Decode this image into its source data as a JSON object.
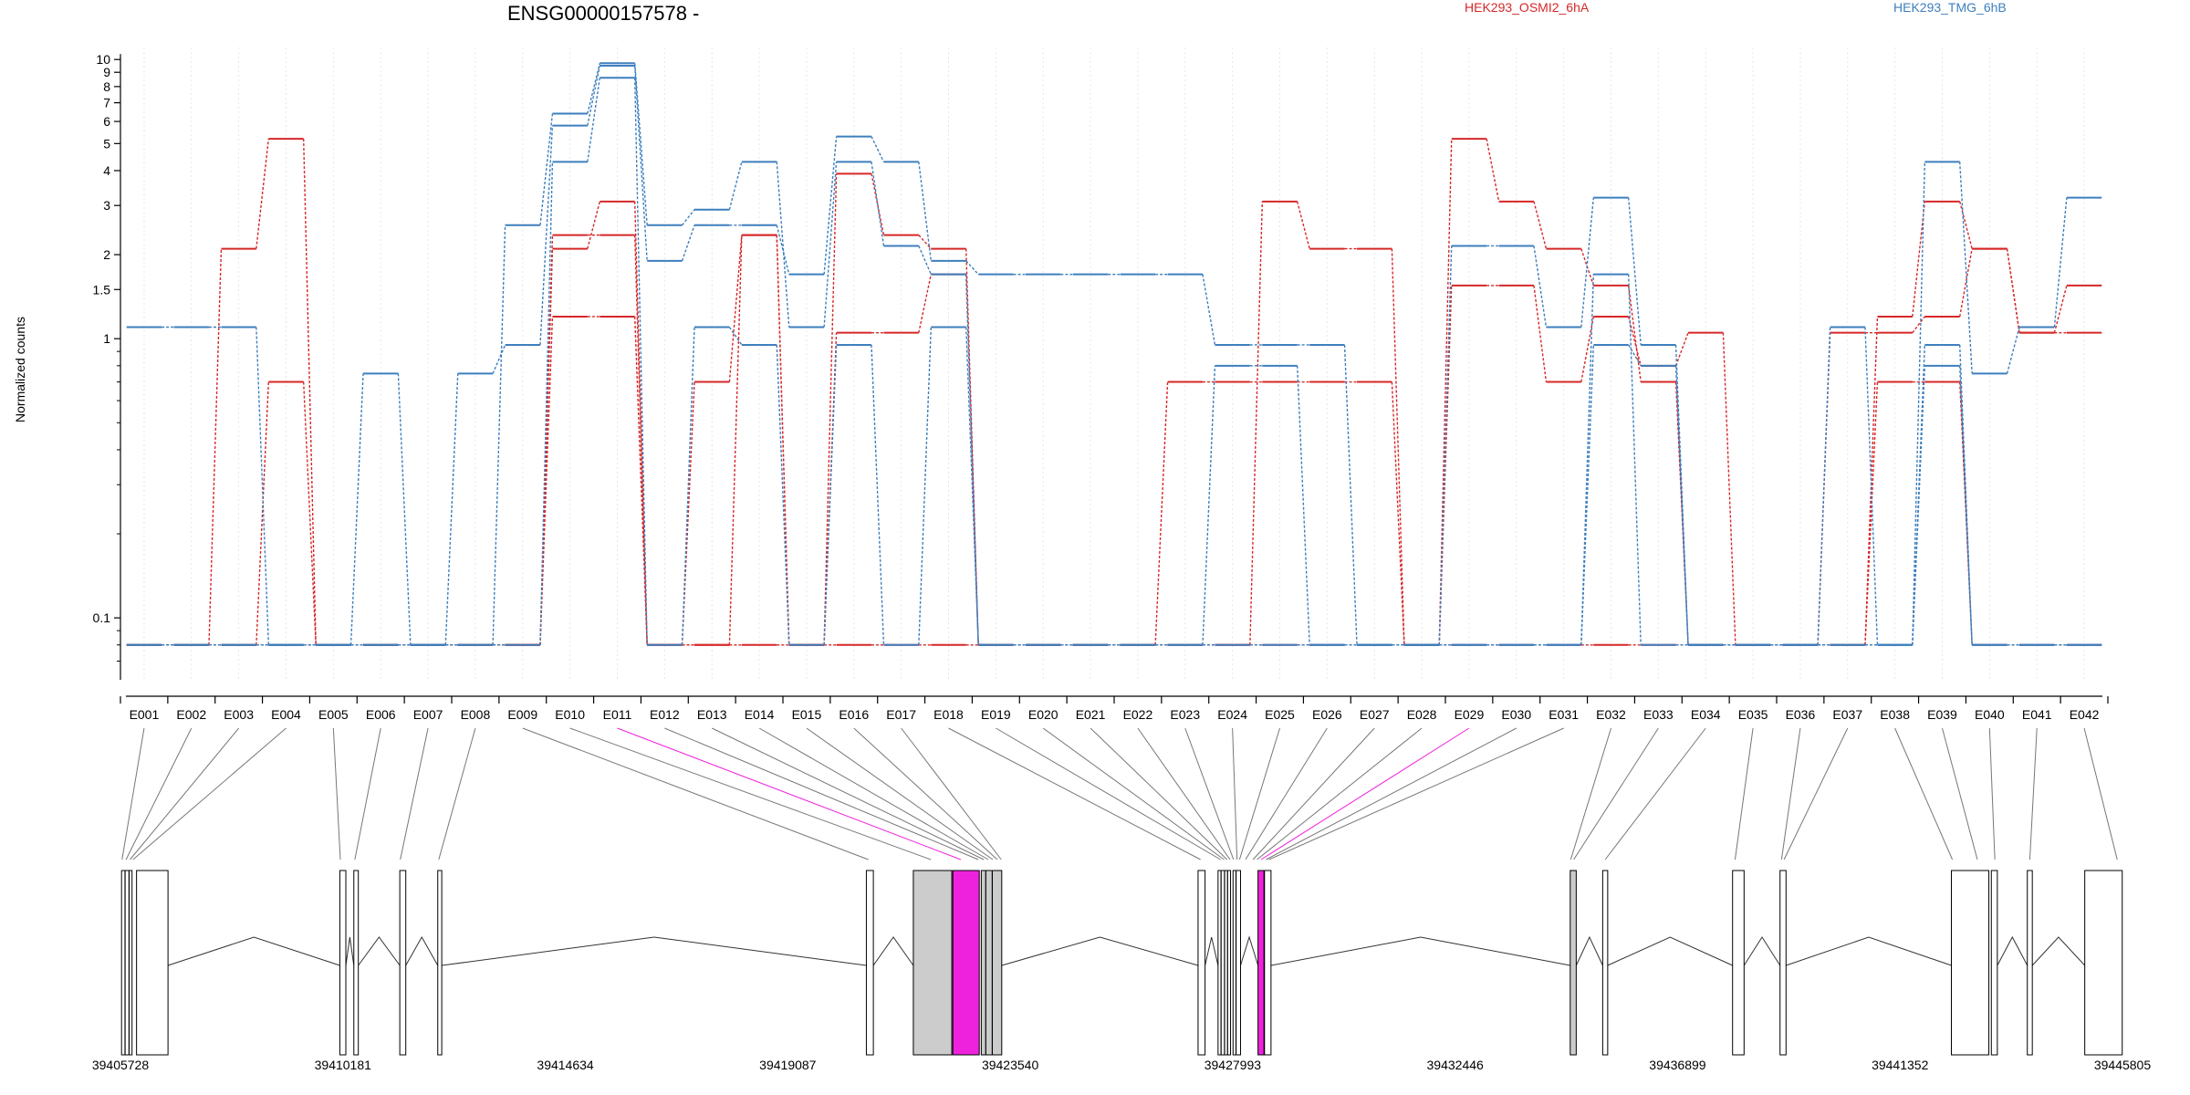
{
  "title": "ENSG00000157578 -",
  "ylabel": "Normalized counts",
  "colors": {
    "cond_a": "#d62728",
    "cond_b": "#3d7fbd",
    "highlight": "#ee22dd",
    "exon_grey": "#cccccc"
  },
  "legend": {
    "cond_a": "HEK293_OSMI2_6hA",
    "cond_b": "HEK293_TMG_6hB"
  },
  "chart_data": {
    "type": "line",
    "title": "ENSG00000157578 -",
    "ylabel": "Normalized counts",
    "yscale": "log",
    "ylim": [
      0.06,
      10.4
    ],
    "yticks": [
      {
        "v": 0.1,
        "label": "0.1"
      },
      {
        "v": 1,
        "label": "1"
      },
      {
        "v": 1.5,
        "label": "1.5"
      },
      {
        "v": 2,
        "label": "2"
      },
      {
        "v": 3,
        "label": "3"
      },
      {
        "v": 4,
        "label": "4"
      },
      {
        "v": 5,
        "label": "5"
      },
      {
        "v": 6,
        "label": "6"
      },
      {
        "v": 7,
        "label": "7"
      },
      {
        "v": 8,
        "label": "8"
      },
      {
        "v": 9,
        "label": "9"
      },
      {
        "v": 10,
        "label": "10"
      }
    ],
    "yticks_minor": [
      0.2,
      0.3,
      0.4,
      0.5,
      0.6,
      0.7,
      0.8,
      0.9
    ],
    "categories": [
      "E001",
      "E002",
      "E003",
      "E004",
      "E005",
      "E006",
      "E007",
      "E008",
      "E009",
      "E010",
      "E011",
      "E012",
      "E013",
      "E014",
      "E015",
      "E016",
      "E017",
      "E018",
      "E019",
      "E020",
      "E021",
      "E022",
      "E023",
      "E024",
      "E025",
      "E026",
      "E027",
      "E028",
      "E029",
      "E030",
      "E031",
      "E032",
      "E033",
      "E034",
      "E035",
      "E036",
      "E037",
      "E038",
      "E039",
      "E040",
      "E041",
      "E042"
    ],
    "highlighted_bins": [
      "E011",
      "E029"
    ],
    "series": [
      {
        "cond": "a",
        "values": [
          0.08,
          0.08,
          2.1,
          5.2,
          0.08,
          0.08,
          0.08,
          0.08,
          0.08,
          2.1,
          3.1,
          0.08,
          0.08,
          2.35,
          0.08,
          3.9,
          2.35,
          2.1,
          0.08,
          0.08,
          0.08,
          0.08,
          0.08,
          0.08,
          3.1,
          2.1,
          2.1,
          0.08,
          5.2,
          3.1,
          2.1,
          1.55,
          0.7,
          0.08,
          0.08,
          0.08,
          0.08,
          1.2,
          3.1,
          2.1,
          1.05,
          1.55
        ]
      },
      {
        "cond": "a",
        "values": [
          0.08,
          0.08,
          0.08,
          0.7,
          0.08,
          0.08,
          0.08,
          0.08,
          0.08,
          2.35,
          2.35,
          0.08,
          0.7,
          2.35,
          0.08,
          1.05,
          1.05,
          1.7,
          0.08,
          0.08,
          0.08,
          0.08,
          0.7,
          0.7,
          0.7,
          0.7,
          0.7,
          0.08,
          1.55,
          1.55,
          0.7,
          1.2,
          0.8,
          1.05,
          0.08,
          0.08,
          1.05,
          1.05,
          1.2,
          2.1,
          1.05,
          1.05
        ]
      },
      {
        "cond": "a",
        "values": [
          0.08,
          0.08,
          0.08,
          0.08,
          0.08,
          0.08,
          0.08,
          0.08,
          0.08,
          1.2,
          1.2,
          0.08,
          0.08,
          0.08,
          0.08,
          0.08,
          0.08,
          0.08,
          0.08,
          0.08,
          0.08,
          0.08,
          0.08,
          0.08,
          0.08,
          0.08,
          0.08,
          0.08,
          0.08,
          0.08,
          0.08,
          0.08,
          0.08,
          0.08,
          0.08,
          0.08,
          0.08,
          0.7,
          0.7,
          0.08,
          0.08,
          0.08
        ]
      },
      {
        "cond": "b",
        "values": [
          1.1,
          1.1,
          1.1,
          0.08,
          0.08,
          0.75,
          0.08,
          0.75,
          0.95,
          5.8,
          9.5,
          1.9,
          2.55,
          2.55,
          1.7,
          5.3,
          4.3,
          1.9,
          1.7,
          1.7,
          1.7,
          1.7,
          1.7,
          0.95,
          0.95,
          0.95,
          0.08,
          0.08,
          2.15,
          2.15,
          1.1,
          3.2,
          0.95,
          0.08,
          0.08,
          0.08,
          1.1,
          0.08,
          4.3,
          0.75,
          1.1,
          3.2
        ]
      },
      {
        "cond": "b",
        "values": [
          0.08,
          0.08,
          0.08,
          0.08,
          0.08,
          0.08,
          0.08,
          0.08,
          2.55,
          6.4,
          9.7,
          2.55,
          2.9,
          4.3,
          1.1,
          4.3,
          2.15,
          1.7,
          0.08,
          0.08,
          0.08,
          0.08,
          0.08,
          0.08,
          0.08,
          0.08,
          0.08,
          0.08,
          0.08,
          0.08,
          0.08,
          1.7,
          0.08,
          0.08,
          0.08,
          0.08,
          0.08,
          0.08,
          0.95,
          0.08,
          0.08,
          0.08
        ]
      },
      {
        "cond": "b",
        "values": [
          0.08,
          0.08,
          0.08,
          0.08,
          0.08,
          0.08,
          0.08,
          0.08,
          0.08,
          4.3,
          8.6,
          0.08,
          1.1,
          0.95,
          0.08,
          0.95,
          0.08,
          1.1,
          0.08,
          0.08,
          0.08,
          0.08,
          0.08,
          0.8,
          0.8,
          0.08,
          0.08,
          0.08,
          0.08,
          0.08,
          0.08,
          0.95,
          0.8,
          0.08,
          0.08,
          0.08,
          0.08,
          0.08,
          0.8,
          0.08,
          0.08,
          0.08
        ]
      }
    ],
    "genomic_axis": {
      "range": [
        39405728,
        39445805
      ],
      "tick_labels": [
        "39405728",
        "39410181",
        "39414634",
        "39419087",
        "39423540",
        "39427993",
        "39432446",
        "39436899",
        "39441352",
        "39445805"
      ]
    }
  }
}
